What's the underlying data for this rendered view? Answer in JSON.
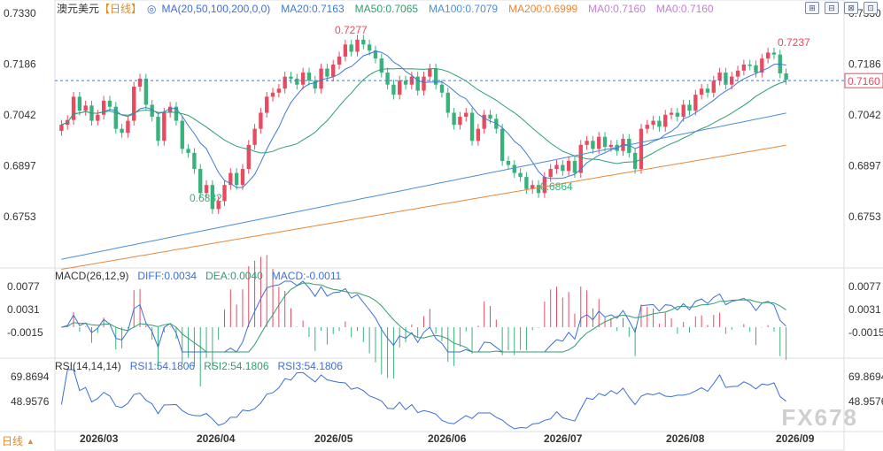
{
  "header": {
    "symbol": "澳元美元",
    "period_tag": "【日线】",
    "ma_legend": [
      {
        "text": "MA(20,50,100,200,0,0)",
        "color": "#3a6fd8"
      },
      {
        "text": "MA20:0.7163",
        "color": "#3a7bd5"
      },
      {
        "text": "MA50:0.7065",
        "color": "#2e9e6e"
      },
      {
        "text": "MA100:0.7079",
        "color": "#4a8fd8"
      },
      {
        "text": "MA200:0.6999",
        "color": "#e8883a"
      },
      {
        "text": "MA0:0.7160",
        "color": "#c77cd8"
      },
      {
        "text": "MA0:0.7160",
        "color": "#c77cd8"
      }
    ]
  },
  "toolbar": {
    "buttons": [
      "⊞",
      "⊟",
      "⊠",
      "⊡"
    ]
  },
  "price_axis": {
    "labels": [
      "0.7330",
      "0.7186",
      "0.7042",
      "0.6897",
      "0.6753"
    ],
    "current": "0.7160"
  },
  "annotations": {
    "high1": "0.7277",
    "high2": "0.7237",
    "low1": "0.6832",
    "low2": "0.6864"
  },
  "macd": {
    "legend": [
      {
        "text": "MACD(26,12,9)",
        "color": "#333333"
      },
      {
        "text": "DIFF:0.0034",
        "color": "#3a6fd8"
      },
      {
        "text": "DEA:0.0040",
        "color": "#2e9e6e"
      },
      {
        "text": "MACD:-0.0011",
        "color": "#3a6fd8"
      }
    ],
    "axis": [
      "0.0077",
      "0.0031",
      "-0.0015"
    ]
  },
  "rsi": {
    "legend": [
      {
        "text": "RSI(14,14,14)",
        "color": "#333333"
      },
      {
        "text": "RSI1:54.1806",
        "color": "#3a6fd8"
      },
      {
        "text": "RSI2:54.1806",
        "color": "#2e9e6e"
      },
      {
        "text": "RSI3:54.1806",
        "color": "#3a6fd8"
      }
    ],
    "axis": [
      "69.8694",
      "48.9576"
    ]
  },
  "date_axis": [
    "2026/03",
    "2026/04",
    "2026/05",
    "2026/06",
    "2026/07",
    "2026/08",
    "2026/09"
  ],
  "bottom": {
    "label": "日线"
  },
  "watermark": "FX678",
  "colors": {
    "up": "#e84a5f",
    "down": "#37b27b",
    "ma20": "#3a7bd5",
    "ma50": "#2e9e6e",
    "ma100": "#4a8fd8",
    "ma200": "#e8883a",
    "current_line": "#3a7bd5"
  },
  "chart_data": {
    "type": "candlestick",
    "ylim": [
      0.67,
      0.733
    ],
    "candles_close": [
      0.705,
      0.7062,
      0.712,
      0.7085,
      0.7098,
      0.706,
      0.7075,
      0.711,
      0.7095,
      0.704,
      0.703,
      0.706,
      0.7145,
      0.7165,
      0.71,
      0.707,
      0.701,
      0.708,
      0.7095,
      0.706,
      0.699,
      0.698,
      0.694,
      0.688,
      0.69,
      0.684,
      0.686,
      0.69,
      0.693,
      0.69,
      0.694,
      0.7,
      0.704,
      0.708,
      0.712,
      0.713,
      0.714,
      0.717,
      0.7165,
      0.715,
      0.718,
      0.716,
      0.714,
      0.719,
      0.717,
      0.72,
      0.722,
      0.725,
      0.7232,
      0.7262,
      0.725,
      0.7235,
      0.7215,
      0.718,
      0.715,
      0.7125,
      0.716,
      0.715,
      0.717,
      0.7135,
      0.717,
      0.719,
      0.715,
      0.713,
      0.708,
      0.705,
      0.707,
      0.708,
      0.701,
      0.704,
      0.7075,
      0.7065,
      0.704,
      0.696,
      0.695,
      0.693,
      0.692,
      0.689,
      0.69,
      0.688,
      0.692,
      0.694,
      0.695,
      0.6935,
      0.696,
      0.693,
      0.7,
      0.701,
      0.699,
      0.702,
      0.6995,
      0.7,
      0.6985,
      0.7015,
      0.698,
      0.694,
      0.704,
      0.705,
      0.706,
      0.7045,
      0.7075,
      0.708,
      0.707,
      0.71,
      0.7085,
      0.7125,
      0.714,
      0.713,
      0.716,
      0.718,
      0.715,
      0.717,
      0.7185,
      0.72,
      0.7198,
      0.718,
      0.7215,
      0.723,
      0.7225,
      0.7178,
      0.7162
    ],
    "levels": {
      "MA20": 0.7163,
      "MA50": 0.7065,
      "MA100": 0.7079,
      "MA200": 0.6999,
      "last": 0.716
    },
    "high_marks": [
      0.7277,
      0.7237
    ],
    "low_marks": [
      0.6832,
      0.6864
    ]
  }
}
